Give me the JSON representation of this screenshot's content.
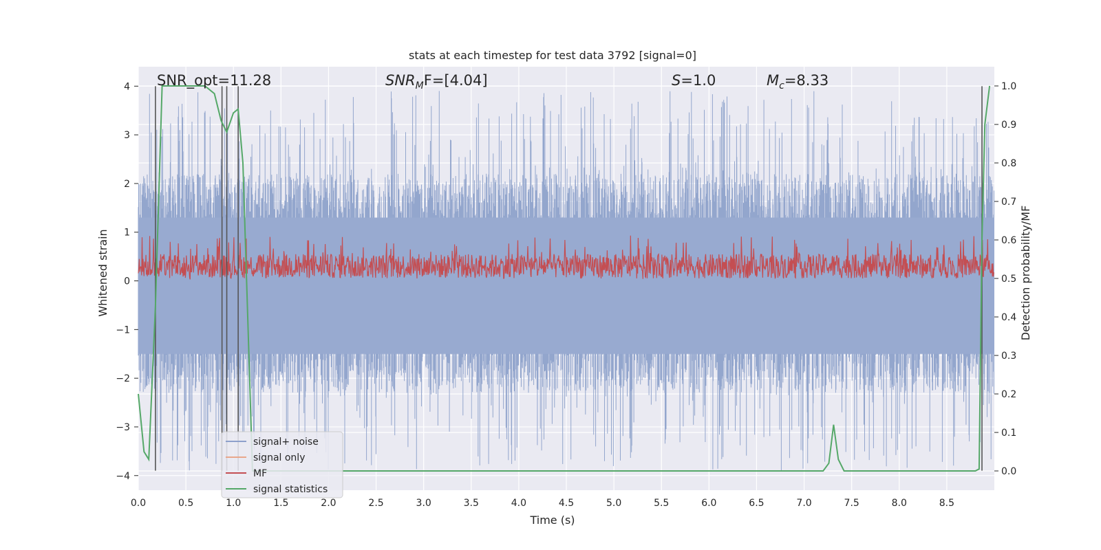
{
  "chart_data": {
    "type": "line",
    "title": "stats at each timestep for test data 3792 [signal=0]",
    "xlabel": "Time (s)",
    "ylabel": "Whitened strain",
    "ylabel_right": "Detection probability/MF",
    "xlim": [
      0.0,
      9.0
    ],
    "ylim": [
      -4.3,
      4.4
    ],
    "ylim_right": [
      -0.05,
      1.05
    ],
    "xticks": [
      "0.0",
      "0.5",
      "1.0",
      "1.5",
      "2.0",
      "2.5",
      "3.0",
      "3.5",
      "4.0",
      "4.5",
      "5.0",
      "5.5",
      "6.0",
      "6.5",
      "7.0",
      "7.5",
      "8.0",
      "8.5"
    ],
    "xtick_values": [
      0.0,
      0.5,
      1.0,
      1.5,
      2.0,
      2.5,
      3.0,
      3.5,
      4.0,
      4.5,
      5.0,
      5.5,
      6.0,
      6.5,
      7.0,
      7.5,
      8.0,
      8.5
    ],
    "yticks": [
      "4",
      "3",
      "2",
      "1",
      "0",
      "−1",
      "−2",
      "−3",
      "−4"
    ],
    "ytick_values": [
      4,
      3,
      2,
      1,
      0,
      -1,
      -2,
      -3,
      -4
    ],
    "yticks_right": [
      "1.0",
      "0.9",
      "0.8",
      "0.7",
      "0.6",
      "0.5",
      "0.4",
      "0.3",
      "0.2",
      "0.1",
      "0.0"
    ],
    "ytick_values_right": [
      1.0,
      0.9,
      0.8,
      0.7,
      0.6,
      0.5,
      0.4,
      0.3,
      0.2,
      0.1,
      0.0
    ],
    "annotations": {
      "snr_opt": "SNR_opt=11.28",
      "snr_mf_base": "SNR",
      "snr_mf_sub": "M",
      "snr_mf_rest": "F=[4.04]",
      "s_base": "S",
      "s_rest": "=1.0",
      "mc_base": "M",
      "mc_sub": "c",
      "mc_rest": "=8.33"
    },
    "legend": {
      "position": "lower-left",
      "entries": [
        {
          "label": "signal+ noise",
          "color": "#8da0cb"
        },
        {
          "label": "signal only",
          "color": "#e9a68a"
        },
        {
          "label": "MF",
          "color": "#c44e52"
        },
        {
          "label": "signal statistics",
          "color": "#55a868"
        }
      ]
    },
    "vertical_lines_x": [
      0.18,
      0.88,
      0.93,
      1.05,
      8.87
    ],
    "vertical_line_range": [
      -3.9,
      4.0
    ],
    "signal_statistics": {
      "x": [
        0.0,
        0.06,
        0.11,
        0.18,
        0.25,
        0.3,
        0.4,
        0.5,
        0.6,
        0.7,
        0.8,
        0.87,
        0.93,
        1.0,
        1.05,
        1.1,
        1.15,
        1.2,
        1.3,
        2.0,
        3.0,
        4.0,
        5.0,
        6.0,
        7.0,
        7.2,
        7.26,
        7.31,
        7.36,
        7.42,
        7.5,
        8.0,
        8.5,
        8.8,
        8.84,
        8.87,
        8.9,
        8.95
      ],
      "y": [
        0.2,
        0.05,
        0.03,
        0.43,
        1.0,
        1.0,
        1.0,
        1.0,
        1.0,
        1.0,
        0.98,
        0.91,
        0.88,
        0.93,
        0.94,
        0.8,
        0.4,
        0.0,
        0.0,
        0.0,
        0.0,
        0.0,
        0.0,
        0.0,
        0.0,
        0.0,
        0.02,
        0.12,
        0.03,
        0.0,
        0.0,
        0.0,
        0.0,
        0.0,
        0.005,
        0.6,
        0.9,
        1.0
      ]
    },
    "noise_envelope": {
      "typical_max": 2.2,
      "peak_max": 3.9,
      "typical_min": -2.3,
      "peak_min": -3.9
    },
    "mf_band": {
      "center": 0.3,
      "min": 0.02,
      "max": 0.95
    }
  }
}
